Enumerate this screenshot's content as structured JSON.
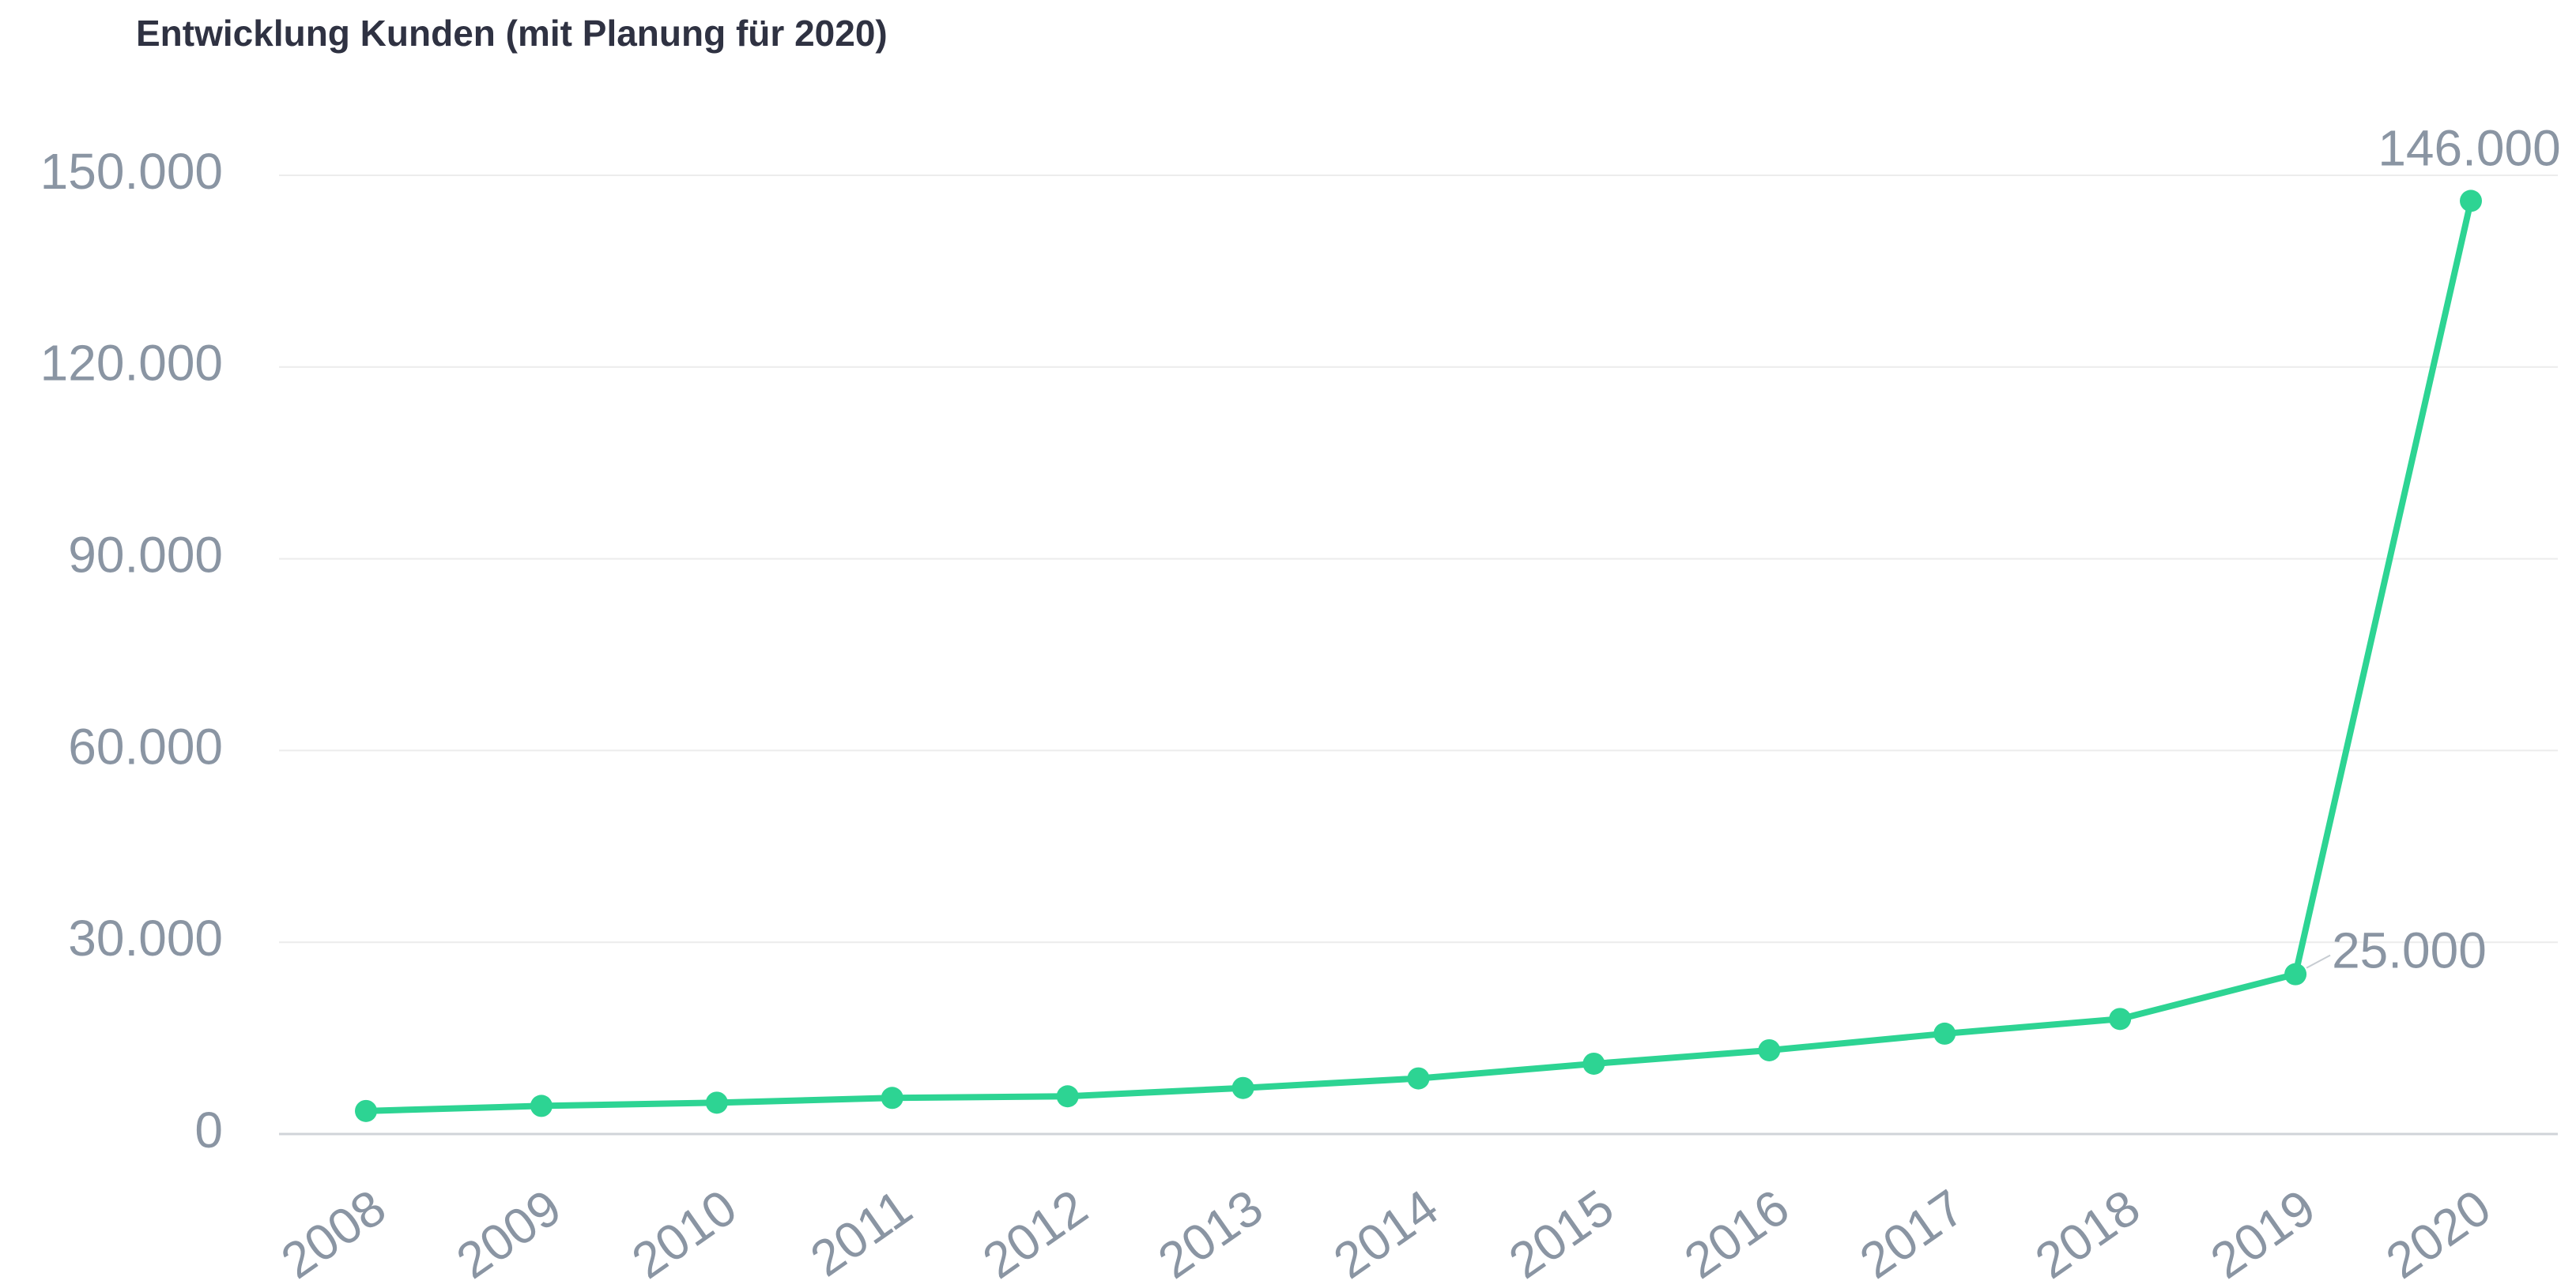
{
  "chart_data": {
    "type": "line",
    "title": "Entwicklung Kunden (mit Planung für 2020)",
    "categories": [
      "2008",
      "2009",
      "2010",
      "2011",
      "2012",
      "2013",
      "2014",
      "2015",
      "2016",
      "2017",
      "2018",
      "2019",
      "2020"
    ],
    "series": [
      {
        "name": "Kunden",
        "color": "#2dd493",
        "values": [
          3600,
          4400,
          4900,
          5650,
          5900,
          7200,
          8700,
          11000,
          13100,
          15700,
          18000,
          25000,
          146000
        ],
        "value_labels": [
          null,
          null,
          null,
          null,
          null,
          null,
          null,
          null,
          null,
          null,
          null,
          "25.000",
          "146.000"
        ]
      }
    ],
    "ylim": [
      0,
      150000
    ],
    "yticks": [
      0,
      {
        "value": 30000,
        "label": "30.000"
      },
      {
        "value": 60000,
        "label": "60.000"
      },
      {
        "value": 90000,
        "label": "90.000"
      },
      {
        "value": 120000,
        "label": "120.000"
      },
      {
        "value": 150000,
        "label": "150.000"
      }
    ],
    "grid": true
  }
}
